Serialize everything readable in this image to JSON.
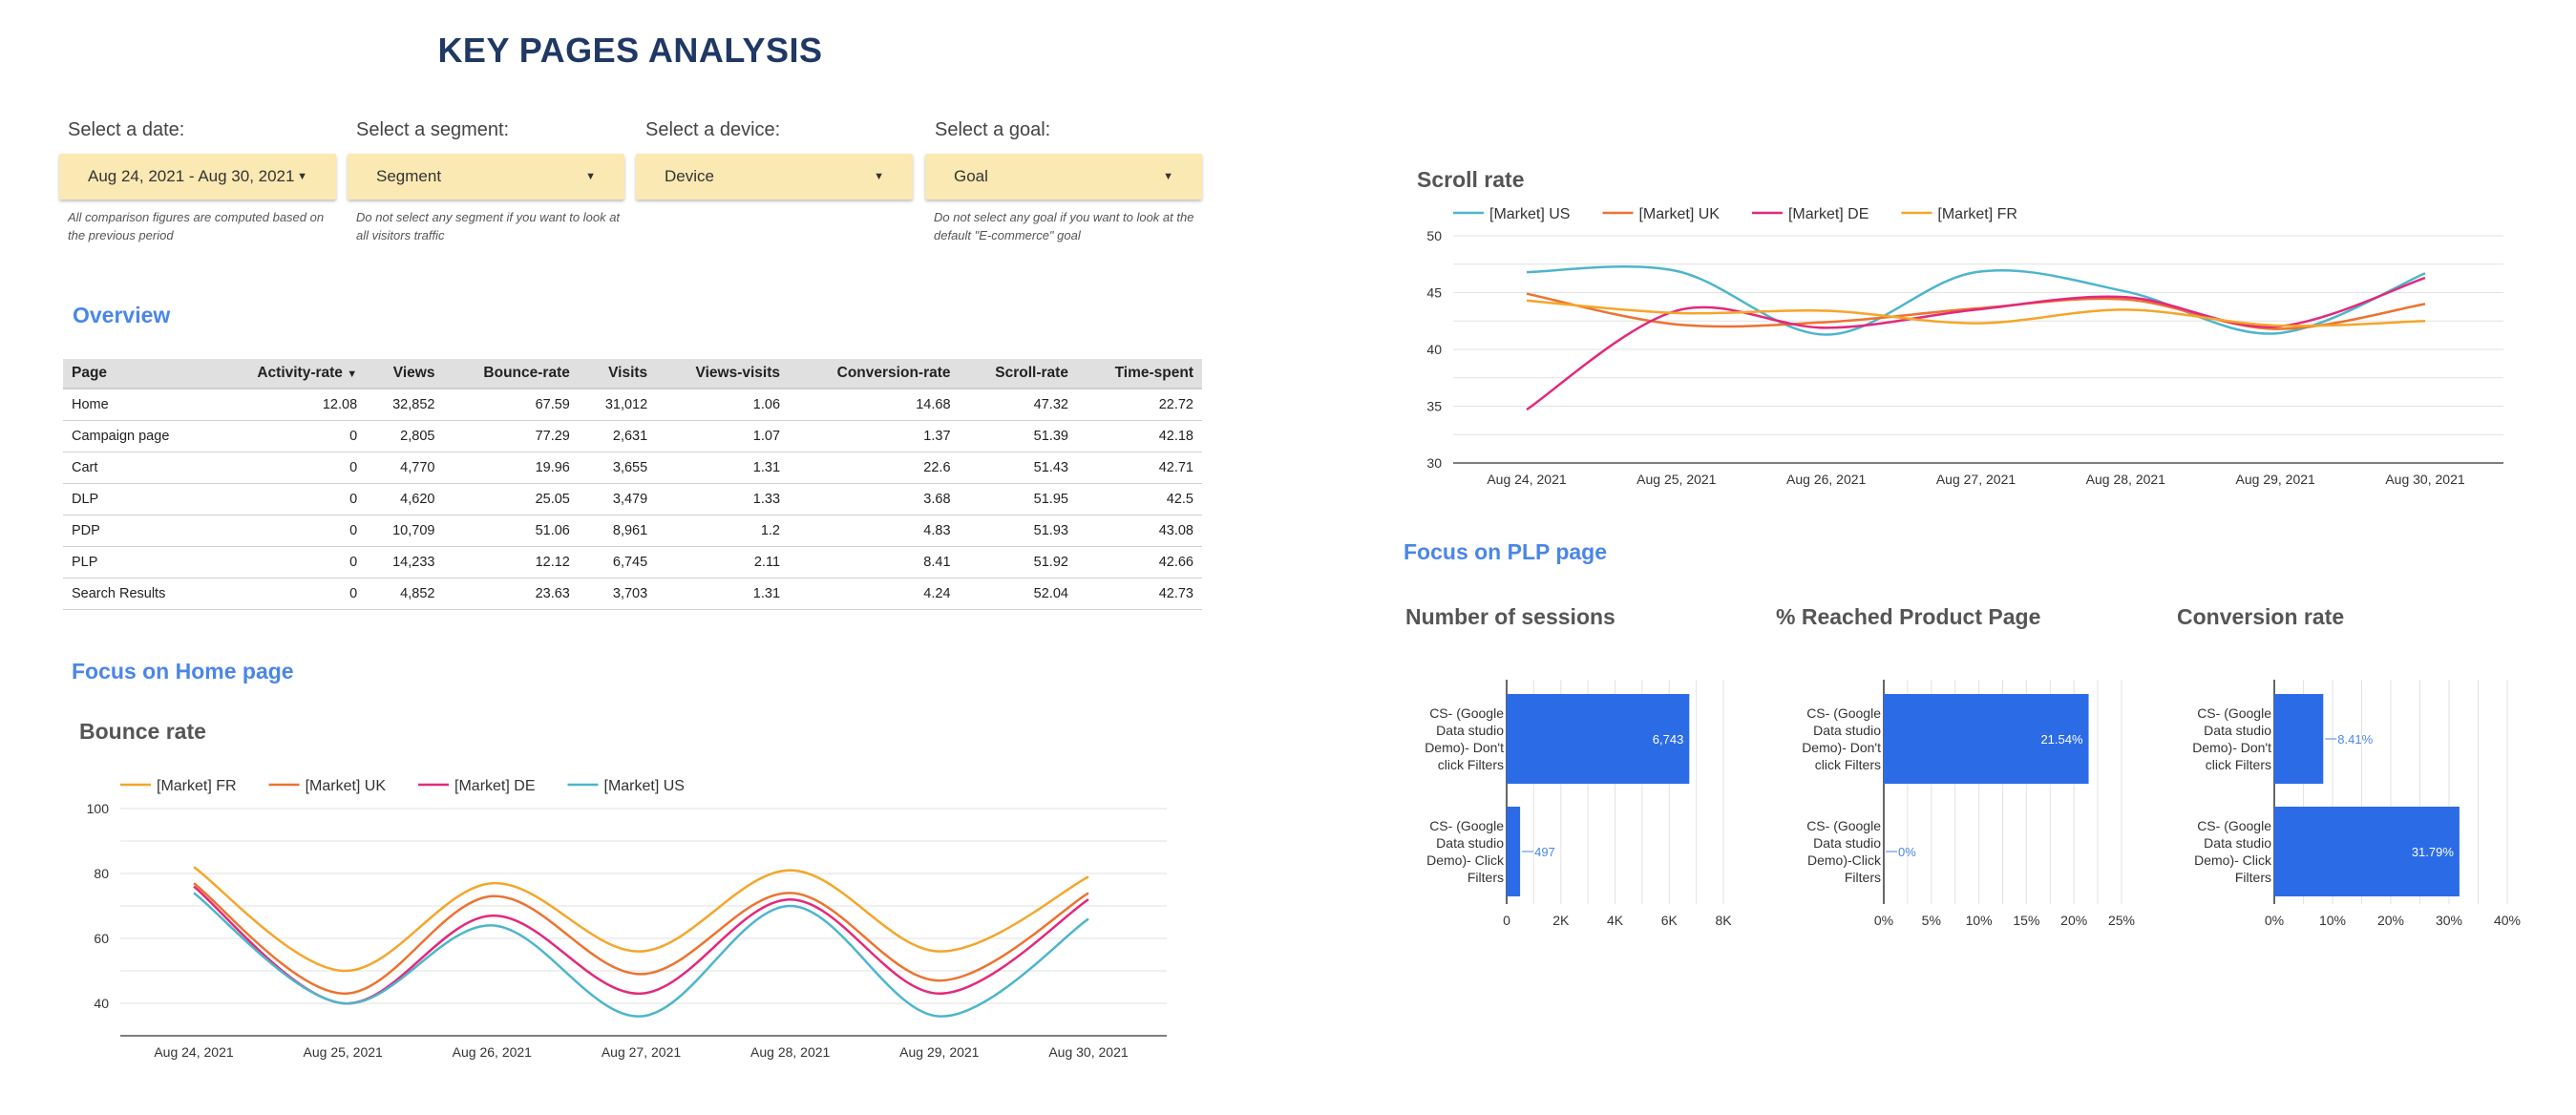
{
  "page_title": "KEY PAGES ANALYSIS",
  "filters": [
    {
      "label": "Select a date:",
      "value": "Aug 24, 2021 - Aug 30, 2021",
      "note": "All comparison figures are computed based on the previous period"
    },
    {
      "label": "Select a segment:",
      "value": "Segment",
      "note": "Do not select any segment if you want to look at all visitors traffic"
    },
    {
      "label": "Select a device:",
      "value": "Device",
      "note": ""
    },
    {
      "label": "Select a goal:",
      "value": "Goal",
      "note": "Do not select any goal if you want to look at the default \"E-commerce\" goal"
    }
  ],
  "overview": {
    "title": "Overview",
    "sort_indicator": "▼",
    "columns": [
      "Page",
      "Activity-rate",
      "Views",
      "Bounce-rate",
      "Visits",
      "Views-visits",
      "Conversion-rate",
      "Scroll-rate",
      "Time-spent"
    ],
    "rows": [
      [
        "Home",
        "12.08",
        "32,852",
        "67.59",
        "31,012",
        "1.06",
        "14.68",
        "47.32",
        "22.72"
      ],
      [
        "Campaign page",
        "0",
        "2,805",
        "77.29",
        "2,631",
        "1.07",
        "1.37",
        "51.39",
        "42.18"
      ],
      [
        "Cart",
        "0",
        "4,770",
        "19.96",
        "3,655",
        "1.31",
        "22.6",
        "51.43",
        "42.71"
      ],
      [
        "DLP",
        "0",
        "4,620",
        "25.05",
        "3,479",
        "1.33",
        "3.68",
        "51.95",
        "42.5"
      ],
      [
        "PDP",
        "0",
        "10,709",
        "51.06",
        "8,961",
        "1.2",
        "4.83",
        "51.93",
        "43.08"
      ],
      [
        "PLP",
        "0",
        "14,233",
        "12.12",
        "6,745",
        "2.11",
        "8.41",
        "51.92",
        "42.66"
      ],
      [
        "Search Results",
        "0",
        "4,852",
        "23.63",
        "3,703",
        "1.31",
        "4.24",
        "52.04",
        "42.73"
      ]
    ]
  },
  "home_section": {
    "title": "Focus on Home page"
  },
  "plp_section": {
    "title": "Focus on PLP page"
  },
  "colors": {
    "fr": "#f4a62a",
    "uk": "#ec7330",
    "de": "#e2297c",
    "us": "#4db5cd",
    "bar": "#2c6be6",
    "accent": "#4a86e8",
    "title": "#1f3864",
    "filter_bg": "#fbe9b3"
  },
  "chart_data": [
    {
      "id": "bounce",
      "type": "line",
      "title": "Bounce rate",
      "x": [
        "Aug 24, 2021",
        "Aug 25, 2021",
        "Aug 26, 2021",
        "Aug 27, 2021",
        "Aug 28, 2021",
        "Aug 29, 2021",
        "Aug 30, 2021"
      ],
      "ylim": [
        30,
        100
      ],
      "yticks": [
        40,
        60,
        80,
        100
      ],
      "grid": true,
      "legend": "top-left",
      "series": [
        {
          "name": "[Market] FR",
          "color": "#f4a62a",
          "values": [
            82,
            50,
            77,
            56,
            81,
            56,
            79
          ]
        },
        {
          "name": "[Market] UK",
          "color": "#ec7330",
          "values": [
            77,
            43,
            73,
            49,
            74,
            47,
            74
          ]
        },
        {
          "name": "[Market] DE",
          "color": "#e2297c",
          "values": [
            76,
            40,
            67,
            43,
            72,
            43,
            72
          ]
        },
        {
          "name": "[Market] US",
          "color": "#4db5cd",
          "values": [
            74,
            40,
            64,
            36,
            70,
            36,
            66
          ]
        }
      ]
    },
    {
      "id": "scroll",
      "type": "line",
      "title": "Scroll rate",
      "x": [
        "Aug 24, 2021",
        "Aug 25, 2021",
        "Aug 26, 2021",
        "Aug 27, 2021",
        "Aug 28, 2021",
        "Aug 29, 2021",
        "Aug 30, 2021"
      ],
      "ylim": [
        30,
        50
      ],
      "yticks": [
        30,
        35,
        40,
        45,
        50
      ],
      "grid": true,
      "legend": "top-left",
      "series": [
        {
          "name": "[Market] US",
          "color": "#4db5cd",
          "values": [
            46.8,
            46.9,
            41.3,
            46.8,
            45.1,
            41.4,
            46.7
          ]
        },
        {
          "name": "[Market] UK",
          "color": "#ec7330",
          "values": [
            44.9,
            42.2,
            42.4,
            43.6,
            44.4,
            41.8,
            44.0
          ]
        },
        {
          "name": "[Market] DE",
          "color": "#e2297c",
          "values": [
            34.7,
            43.4,
            41.9,
            43.5,
            44.6,
            42.0,
            46.3
          ]
        },
        {
          "name": "[Market] FR",
          "color": "#f4a62a",
          "values": [
            44.3,
            43.2,
            43.4,
            42.3,
            43.5,
            42.1,
            42.5
          ]
        }
      ]
    },
    {
      "id": "sessions",
      "type": "bar",
      "title": "Number of sessions",
      "categories": [
        "CS- (Google Data studio Demo)- Don't click Filters",
        "CS- (Google Data studio Demo)- Click Filters"
      ],
      "values": [
        6743,
        497
      ],
      "labels": [
        "6,743",
        "497"
      ],
      "xlim": [
        0,
        8000
      ],
      "xticks": [
        "0",
        "2K",
        "4K",
        "6K",
        "8K"
      ]
    },
    {
      "id": "reached",
      "type": "bar",
      "title": "% Reached Product Page",
      "categories": [
        "CS- (Google Data studio Demo)- Don't click Filters",
        "CS- (Google Data studio Demo)-Click Filters"
      ],
      "values": [
        21.54,
        0
      ],
      "labels": [
        "21.54%",
        "0%"
      ],
      "xlim": [
        0,
        25
      ],
      "xticks": [
        "0%",
        "5%",
        "10%",
        "15%",
        "20%",
        "25%"
      ]
    },
    {
      "id": "conversion",
      "type": "bar",
      "title": "Conversion rate",
      "categories": [
        "CS- (Google Data studio Demo)- Don't click Filters",
        "CS- (Google Data studio Demo)- Click Filters"
      ],
      "values": [
        8.41,
        31.79
      ],
      "labels": [
        "8.41%",
        "31.79%"
      ],
      "xlim": [
        0,
        40
      ],
      "xticks": [
        "0%",
        "10%",
        "20%",
        "30%",
        "40%"
      ]
    }
  ]
}
